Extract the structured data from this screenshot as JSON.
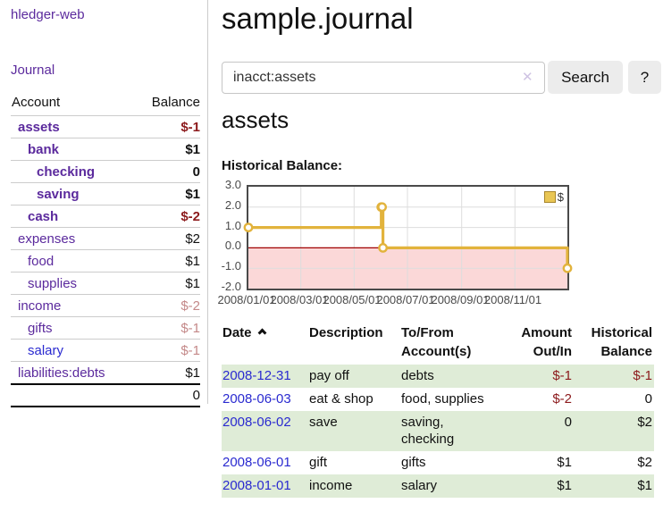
{
  "colors": {
    "purple": "#5b2a9d",
    "blue": "#2a2ad0",
    "negative": "#8c1a1c",
    "negative_faded": "#c48989",
    "row_stripe_green": "#dfecd7",
    "chart_line_gold": "#e2b33c",
    "legend_gold": "#e9c654",
    "negative_area_pink": "#fbd8d8",
    "zero_line_red": "#a00000",
    "grid_gray": "#dddddd"
  },
  "sidebar": {
    "brand": "hledger-web",
    "nav": {
      "journal": "Journal"
    },
    "accounts": {
      "header": {
        "account": "Account",
        "balance": "Balance"
      },
      "rows": [
        {
          "name": "assets",
          "level": 0,
          "bold": true,
          "link": "purple",
          "balance": "$-1",
          "bal": "neg"
        },
        {
          "name": "bank",
          "level": 1,
          "bold": true,
          "link": "purple",
          "balance": "$1",
          "bal": "pos"
        },
        {
          "name": "checking",
          "level": 2,
          "bold": true,
          "link": "purple",
          "balance": "0",
          "bal": "pos"
        },
        {
          "name": "saving",
          "level": 2,
          "bold": true,
          "link": "purple",
          "balance": "$1",
          "bal": "pos"
        },
        {
          "name": "cash",
          "level": 1,
          "bold": true,
          "link": "purple",
          "balance": "$-2",
          "bal": "neg"
        },
        {
          "name": "expenses",
          "level": 0,
          "bold": false,
          "link": "purple",
          "balance": "$2",
          "bal": "pos"
        },
        {
          "name": "food",
          "level": 1,
          "bold": false,
          "link": "purple",
          "balance": "$1",
          "bal": "pos"
        },
        {
          "name": "supplies",
          "level": 1,
          "bold": false,
          "link": "purple",
          "balance": "$1",
          "bal": "pos"
        },
        {
          "name": "income",
          "level": 0,
          "bold": false,
          "link": "purple",
          "balance": "$-2",
          "bal": "negfaded"
        },
        {
          "name": "gifts",
          "level": 1,
          "bold": false,
          "link": "purple",
          "balance": "$-1",
          "bal": "negfaded"
        },
        {
          "name": "salary",
          "level": 1,
          "bold": false,
          "link": "blue",
          "balance": "$-1",
          "bal": "negfaded"
        },
        {
          "name": "liabilities:debts",
          "level": 0,
          "bold": false,
          "link": "purple",
          "balance": "$1",
          "bal": "pos"
        }
      ],
      "total": "0"
    }
  },
  "main": {
    "title": "sample.journal",
    "search": {
      "value": "inacct:assets",
      "clear_icon": "✕",
      "button": "Search",
      "help": "?"
    },
    "section_title": "assets",
    "chart_label": "Historical Balance:"
  },
  "chart_data": {
    "type": "line",
    "style": "step-after",
    "title": "Historical Balance",
    "series": [
      {
        "name": "$",
        "points": [
          [
            "2008-01-01",
            1
          ],
          [
            "2008-06-01",
            2
          ],
          [
            "2008-06-02",
            2
          ],
          [
            "2008-06-03",
            0
          ],
          [
            "2008-12-31",
            -1
          ]
        ]
      }
    ],
    "xlim": [
      "2008-01-01",
      "2008-12-31"
    ],
    "ylim": [
      -2,
      3
    ],
    "yticks": [
      {
        "v": 3,
        "label": "3.0"
      },
      {
        "v": 2,
        "label": "2.0"
      },
      {
        "v": 1,
        "label": "1.0"
      },
      {
        "v": 0,
        "label": "0.0"
      },
      {
        "v": -1,
        "label": "-1.0"
      },
      {
        "v": -2,
        "label": "-2.0"
      }
    ],
    "xticks": [
      {
        "date": "2008-01-01",
        "label": "2008/01/01"
      },
      {
        "date": "2008-03-01",
        "label": "2008/03/01"
      },
      {
        "date": "2008-05-01",
        "label": "2008/05/01"
      },
      {
        "date": "2008-07-01",
        "label": "2008/07/01"
      },
      {
        "date": "2008-09-01",
        "label": "2008/09/01"
      },
      {
        "date": "2008-11-01",
        "label": "2008/11/01"
      }
    ],
    "legend": {
      "label": "$",
      "position": "top-right"
    },
    "grid": true,
    "negative_area_filled": true
  },
  "table": {
    "headers": [
      {
        "key": "date",
        "lines": [
          "Date"
        ],
        "sort": "asc",
        "align": "left"
      },
      {
        "key": "description",
        "lines": [
          "Description"
        ],
        "sort": null,
        "align": "left"
      },
      {
        "key": "accounts",
        "lines": [
          "To/From",
          "Account(s)"
        ],
        "sort": null,
        "align": "left"
      },
      {
        "key": "amount",
        "lines": [
          "Amount",
          "Out/In"
        ],
        "sort": null,
        "align": "right"
      },
      {
        "key": "balance",
        "lines": [
          "Historical",
          "Balance"
        ],
        "sort": null,
        "align": "right"
      }
    ],
    "rows": [
      {
        "date": "2008-12-31",
        "description": "pay off",
        "accounts": "debts",
        "amount": "$-1",
        "amount_neg": true,
        "balance": "$-1",
        "balance_neg": true
      },
      {
        "date": "2008-06-03",
        "description": "eat & shop",
        "accounts": "food, supplies",
        "amount": "$-2",
        "amount_neg": true,
        "balance": "0",
        "balance_neg": false
      },
      {
        "date": "2008-06-02",
        "description": "save",
        "accounts": "saving,\nchecking",
        "amount": "0",
        "amount_neg": false,
        "balance": "$2",
        "balance_neg": false
      },
      {
        "date": "2008-06-01",
        "description": "gift",
        "accounts": "gifts",
        "amount": "$1",
        "amount_neg": false,
        "balance": "$2",
        "balance_neg": false
      },
      {
        "date": "2008-01-01",
        "description": "income",
        "accounts": "salary",
        "amount": "$1",
        "amount_neg": false,
        "balance": "$1",
        "balance_neg": false
      }
    ]
  }
}
